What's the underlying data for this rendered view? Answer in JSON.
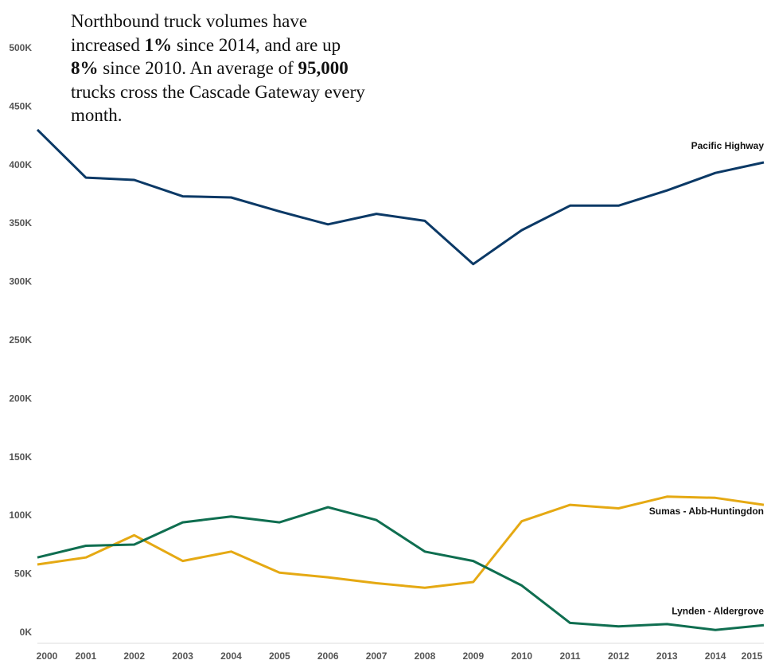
{
  "annotation": {
    "p1": "Northbound truck volumes have increased ",
    "b1": "1%",
    "p2": " since 2014, and are up ",
    "b2": "8%",
    "p3": " since 2010. An average of ",
    "b3": "95,000",
    "p4": " trucks cross the Cascade Gateway every month."
  },
  "chart_data": {
    "type": "line",
    "x": [
      "2000",
      "2001",
      "2002",
      "2003",
      "2004",
      "2005",
      "2006",
      "2007",
      "2008",
      "2009",
      "2010",
      "2011",
      "2012",
      "2013",
      "2014",
      "2015"
    ],
    "ylim": [
      0,
      550000
    ],
    "yticks": [
      0,
      50000,
      100000,
      150000,
      200000,
      250000,
      300000,
      350000,
      400000,
      450000,
      500000
    ],
    "ytick_labels": [
      "0K",
      "50K",
      "100K",
      "150K",
      "200K",
      "250K",
      "300K",
      "350K",
      "400K",
      "450K",
      "500K"
    ],
    "grid": false,
    "legend": "inline labels at line ends",
    "series": [
      {
        "name": "Pacific Highway",
        "color": "#0b3966",
        "values": [
          434000,
          393000,
          391000,
          377000,
          376000,
          364000,
          353000,
          362000,
          356000,
          319000,
          348000,
          369000,
          369000,
          382000,
          397000,
          406000
        ]
      },
      {
        "name": "Sumas - Abb-Huntingdon",
        "color": "#e5a913",
        "values": [
          62000,
          68000,
          87000,
          65000,
          73000,
          55000,
          51000,
          46000,
          42000,
          47000,
          99000,
          113000,
          110000,
          120000,
          119000,
          113000
        ]
      },
      {
        "name": "Lynden - Aldergrove",
        "color": "#0f6e50",
        "values": [
          68000,
          78000,
          79000,
          98000,
          103000,
          98000,
          111000,
          100000,
          73000,
          65000,
          44000,
          12000,
          9000,
          11000,
          6000,
          10000
        ]
      }
    ]
  }
}
